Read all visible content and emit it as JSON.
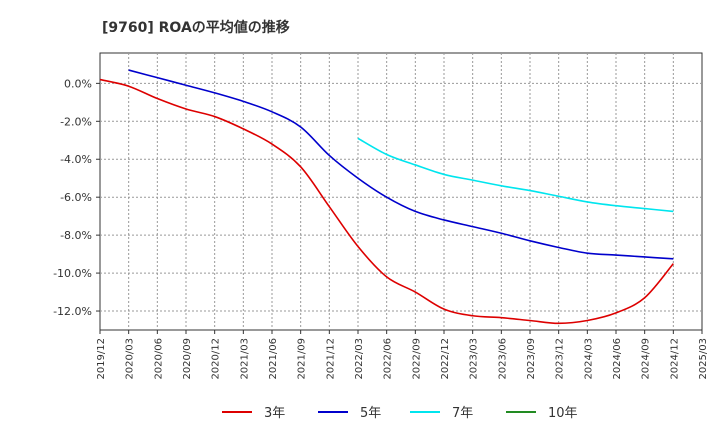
{
  "chart_data": {
    "type": "line",
    "title": "[9760]  ROAの平均値の推移",
    "xlabel": "",
    "ylabel": "",
    "x_ticks": [
      "2019/12",
      "2020/03",
      "2020/06",
      "2020/09",
      "2020/12",
      "2021/03",
      "2021/06",
      "2021/09",
      "2021/12",
      "2022/03",
      "2022/06",
      "2022/09",
      "2022/12",
      "2023/03",
      "2023/06",
      "2023/09",
      "2023/12",
      "2024/03",
      "2024/06",
      "2024/09",
      "2024/12",
      "2025/03"
    ],
    "y_ticks": [
      "0.0%",
      "-2.0%",
      "-4.0%",
      "-6.0%",
      "-8.0%",
      "-10.0%",
      "-12.0%"
    ],
    "y_tick_values": [
      0,
      -2,
      -4,
      -6,
      -8,
      -10,
      -12
    ],
    "ylim": [
      -13,
      1.6
    ],
    "grid": true,
    "legend_position": "bottom",
    "series": [
      {
        "name": "3年",
        "color": "#dd0000",
        "x": [
          "2019/12",
          "2020/03",
          "2020/06",
          "2020/09",
          "2020/12",
          "2021/03",
          "2021/06",
          "2021/09",
          "2021/12",
          "2022/03",
          "2022/06",
          "2022/09",
          "2022/12",
          "2023/03",
          "2023/06",
          "2023/09",
          "2023/12",
          "2024/03",
          "2024/06",
          "2024/09",
          "2024/12"
        ],
        "values": [
          0.2,
          -0.15,
          -0.8,
          -1.35,
          -1.75,
          -2.4,
          -3.2,
          -4.4,
          -6.5,
          -8.6,
          -10.2,
          -11.0,
          -11.9,
          -12.25,
          -12.35,
          -12.5,
          -12.65,
          -12.5,
          -12.1,
          -11.3,
          -9.5
        ]
      },
      {
        "name": "5年",
        "color": "#0000cc",
        "x": [
          "2020/03",
          "2020/06",
          "2020/09",
          "2020/12",
          "2021/03",
          "2021/06",
          "2021/09",
          "2021/12",
          "2022/03",
          "2022/06",
          "2022/09",
          "2022/12",
          "2023/03",
          "2023/06",
          "2023/09",
          "2023/12",
          "2024/03",
          "2024/06",
          "2024/09",
          "2024/12"
        ],
        "values": [
          0.7,
          0.3,
          -0.1,
          -0.5,
          -0.95,
          -1.5,
          -2.3,
          -3.8,
          -5.0,
          -6.0,
          -6.75,
          -7.2,
          -7.55,
          -7.9,
          -8.3,
          -8.65,
          -8.95,
          -9.05,
          -9.15,
          -9.25
        ]
      },
      {
        "name": "7年",
        "color": "#00e5ee",
        "x": [
          "2022/03",
          "2022/06",
          "2022/09",
          "2022/12",
          "2023/03",
          "2023/06",
          "2023/09",
          "2023/12",
          "2024/03",
          "2024/06",
          "2024/09",
          "2024/12"
        ],
        "values": [
          -2.9,
          -3.75,
          -4.3,
          -4.8,
          -5.1,
          -5.4,
          -5.65,
          -5.95,
          -6.25,
          -6.45,
          -6.6,
          -6.75
        ]
      },
      {
        "name": "10年",
        "color": "#228b22",
        "x": [],
        "values": []
      }
    ]
  }
}
